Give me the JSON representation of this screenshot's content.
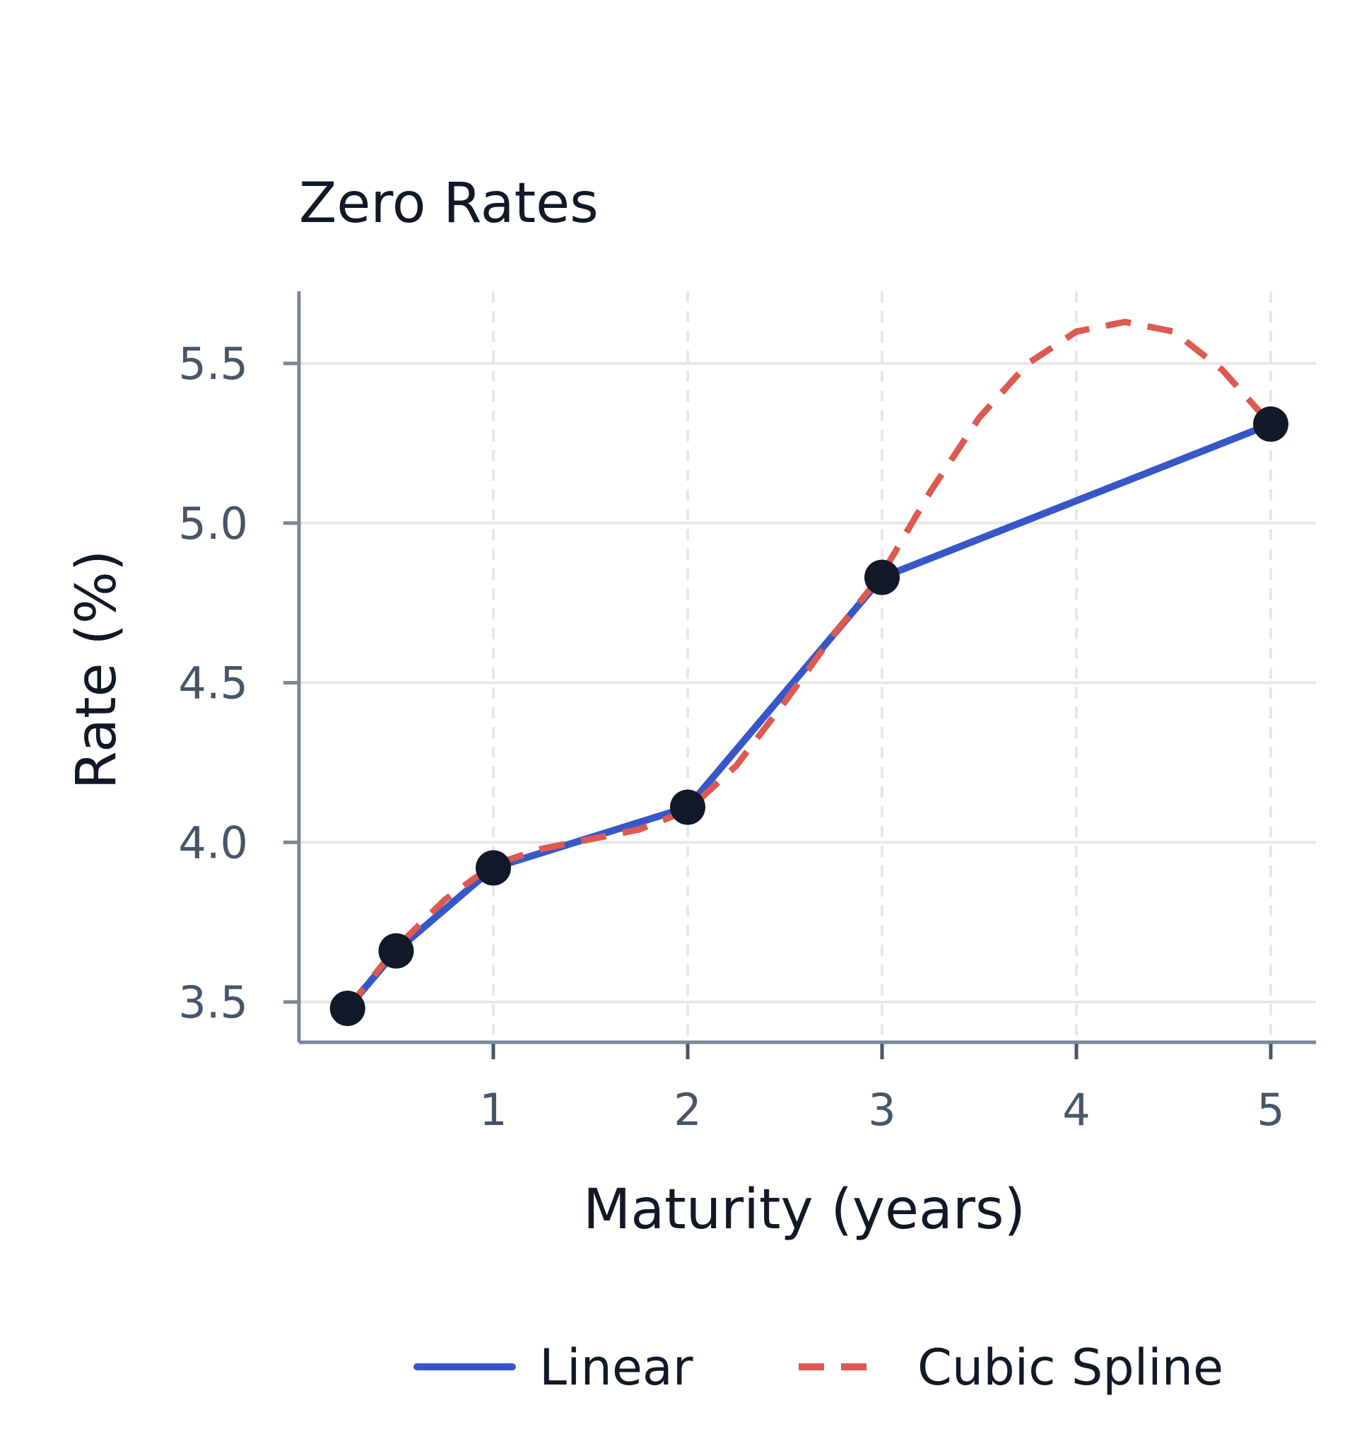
{
  "chart_data": {
    "type": "line",
    "title": "Zero Rates",
    "xlabel": "Maturity (years)",
    "ylabel": "Rate (%)",
    "xlim": [
      0,
      5.25
    ],
    "ylim": [
      3.38,
      5.73
    ],
    "xticks": [
      1,
      2,
      3,
      4,
      5
    ],
    "xtick_labels": [
      "1",
      "2",
      "3",
      "4",
      "5"
    ],
    "yticks": [
      3.5,
      4.0,
      4.5,
      5.0,
      5.5
    ],
    "ytick_labels": [
      "3.5",
      "4.0",
      "4.5",
      "5.0",
      "5.5"
    ],
    "grid": true,
    "legend_position": "bottom",
    "points": {
      "x": [
        0.25,
        0.5,
        1,
        2,
        3,
        5
      ],
      "y": [
        3.48,
        3.66,
        3.92,
        4.11,
        4.83,
        5.31
      ],
      "color": "#111827"
    },
    "series": [
      {
        "name": "Linear",
        "style": "solid",
        "color": "#3757c9",
        "x": [
          0.25,
          0.5,
          1,
          2,
          3,
          5
        ],
        "y": [
          3.48,
          3.66,
          3.92,
          4.11,
          4.83,
          5.31
        ]
      },
      {
        "name": "Cubic Spline",
        "style": "dashed",
        "color": "#dc5a4f",
        "x": [
          0.25,
          0.5,
          0.75,
          1,
          1.25,
          1.5,
          1.75,
          2,
          2.25,
          2.5,
          2.75,
          3,
          3.25,
          3.5,
          3.75,
          4,
          4.25,
          4.5,
          4.75,
          5
        ],
        "y": [
          3.48,
          3.67,
          3.82,
          3.93,
          3.98,
          4.01,
          4.04,
          4.1,
          4.24,
          4.44,
          4.65,
          4.84,
          5.1,
          5.33,
          5.5,
          5.6,
          5.63,
          5.6,
          5.48,
          5.31
        ]
      }
    ]
  }
}
